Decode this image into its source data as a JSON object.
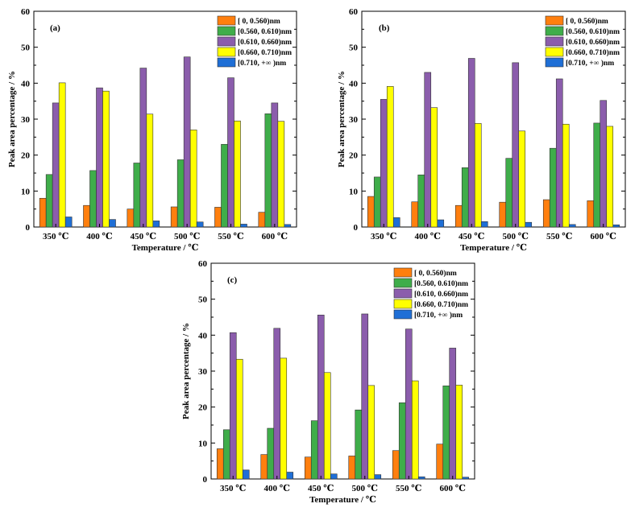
{
  "figure": {
    "legend_entries": [
      "[ 0, 0.560)nm",
      "[0.560, 0.610)nm",
      "[0.610, 0.660)nm",
      "[0.660, 0.710)nm",
      "[0.710, +∞ )nm"
    ],
    "colors": [
      "#ff7f0e",
      "#3fad4a",
      "#8b5dac",
      "#ffff00",
      "#1f6fd6"
    ]
  },
  "chart_data": [
    {
      "type": "bar",
      "panel_label": "(a)",
      "title": "",
      "xlabel": "Temperature / ℃",
      "ylabel": "Peak area percentage / %",
      "ylim": [
        0,
        60
      ],
      "yticks": [
        0,
        10,
        20,
        30,
        40,
        50,
        60
      ],
      "grid": false,
      "legend_position": "top-right",
      "categories": [
        "350 ℃",
        "400 ℃",
        "450 ℃",
        "500 ℃",
        "550 ℃",
        "600 ℃"
      ],
      "series": [
        {
          "name": "[ 0, 0.560)nm",
          "values": [
            8.0,
            6.0,
            5.0,
            5.6,
            5.5,
            4.1
          ]
        },
        {
          "name": "[0.560, 0.610)nm",
          "values": [
            14.6,
            15.7,
            17.8,
            18.7,
            23.0,
            31.5
          ]
        },
        {
          "name": "[0.610, 0.660)nm",
          "values": [
            34.5,
            38.7,
            44.2,
            47.3,
            41.5,
            34.5
          ]
        },
        {
          "name": "[0.660, 0.710)nm",
          "values": [
            40.1,
            37.8,
            31.4,
            27.0,
            29.5,
            29.4
          ]
        },
        {
          "name": "[0.710, +∞ )nm",
          "values": [
            2.8,
            2.1,
            1.7,
            1.4,
            0.8,
            0.7
          ]
        }
      ]
    },
    {
      "type": "bar",
      "panel_label": "(b)",
      "title": "",
      "xlabel": "Temperature / ℃",
      "ylabel": "Peak area percentage / %",
      "ylim": [
        0,
        60
      ],
      "yticks": [
        0,
        10,
        20,
        30,
        40,
        50,
        60
      ],
      "grid": false,
      "legend_position": "top-right",
      "categories": [
        "350 ℃",
        "400 ℃",
        "450 ℃",
        "500 ℃",
        "550 ℃",
        "600 ℃"
      ],
      "series": [
        {
          "name": "[ 0, 0.560)nm",
          "values": [
            8.5,
            7.0,
            6.0,
            6.9,
            7.6,
            7.3
          ]
        },
        {
          "name": "[0.560, 0.610)nm",
          "values": [
            13.9,
            14.5,
            16.5,
            19.1,
            21.9,
            28.9
          ]
        },
        {
          "name": "[0.610, 0.660)nm",
          "values": [
            35.5,
            43.0,
            46.9,
            45.7,
            41.2,
            35.2
          ]
        },
        {
          "name": "[0.660, 0.710)nm",
          "values": [
            39.1,
            33.2,
            28.8,
            26.7,
            28.6,
            28.0
          ]
        },
        {
          "name": "[0.710, +∞ )nm",
          "values": [
            2.6,
            2.0,
            1.5,
            1.3,
            0.7,
            0.6
          ]
        }
      ]
    },
    {
      "type": "bar",
      "panel_label": "(c)",
      "title": "",
      "xlabel": "Temperature / ℃",
      "ylabel": "Peak area percentage / %",
      "ylim": [
        0,
        60
      ],
      "yticks": [
        0,
        10,
        20,
        30,
        40,
        50,
        60
      ],
      "grid": false,
      "legend_position": "top-right",
      "categories": [
        "350 ℃",
        "400 ℃",
        "450 ℃",
        "500 ℃",
        "550 ℃",
        "600 ℃"
      ],
      "series": [
        {
          "name": "[ 0, 0.560)nm",
          "values": [
            8.4,
            6.8,
            6.1,
            6.4,
            7.9,
            9.7
          ]
        },
        {
          "name": "[0.560, 0.610)nm",
          "values": [
            13.7,
            14.1,
            16.2,
            19.2,
            21.2,
            25.9
          ]
        },
        {
          "name": "[0.610, 0.660)nm",
          "values": [
            40.7,
            41.9,
            45.6,
            45.9,
            41.7,
            36.4
          ]
        },
        {
          "name": "[0.660, 0.710)nm",
          "values": [
            33.3,
            33.6,
            29.6,
            26.0,
            27.3,
            26.1
          ]
        },
        {
          "name": "[0.710, +∞ )nm",
          "values": [
            2.5,
            1.9,
            1.4,
            1.2,
            0.6,
            0.5
          ]
        }
      ]
    }
  ]
}
